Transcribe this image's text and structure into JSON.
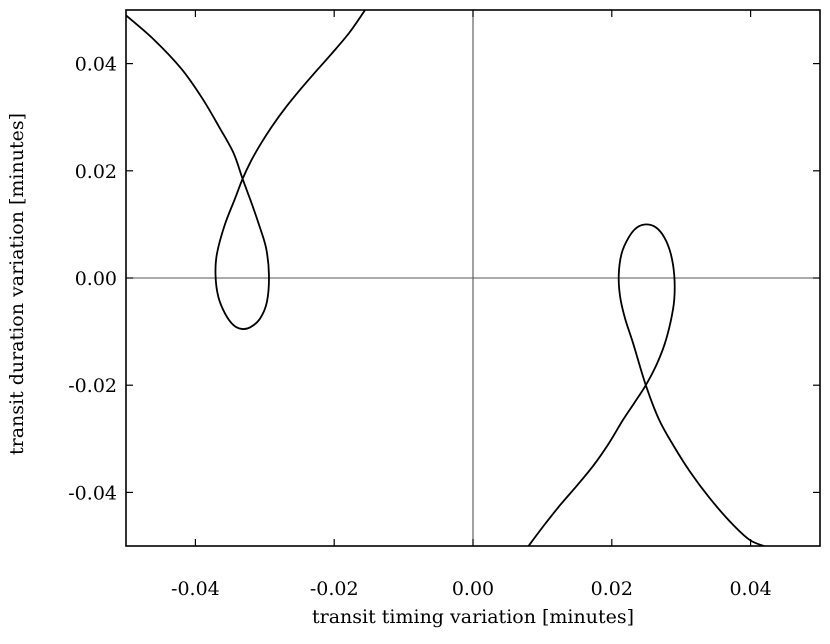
{
  "chart_data": {
    "type": "line",
    "title": "",
    "xlabel": "transit timing variation [minutes]",
    "ylabel": "transit duration variation [minutes]",
    "xlim": [
      -0.05,
      0.05
    ],
    "ylim": [
      -0.05,
      0.05
    ],
    "xticks": [
      -0.04,
      -0.02,
      0.0,
      0.02,
      0.04
    ],
    "yticks": [
      -0.04,
      -0.02,
      0.0,
      0.02,
      0.04
    ],
    "xtick_labels": [
      "-0.04",
      "-0.02",
      "0.00",
      "0.02",
      "0.04"
    ],
    "ytick_labels": [
      "-0.04",
      "-0.02",
      "0.00",
      "0.02",
      "0.04"
    ],
    "zero_lines": true,
    "grid": false,
    "legend": "none",
    "series": [
      {
        "x": [
          -0.05,
          -0.046,
          -0.042,
          -0.039,
          -0.0365,
          -0.0345,
          -0.0332,
          -0.032,
          -0.0308,
          -0.0298,
          -0.0294,
          -0.0297,
          -0.0307,
          -0.0321,
          -0.0333,
          -0.0345,
          -0.0357,
          -0.0367,
          -0.0371,
          -0.0369,
          -0.0358,
          -0.0343,
          -0.0332,
          -0.032,
          -0.0305,
          -0.0288,
          -0.027,
          -0.025,
          -0.0228,
          -0.0204,
          -0.0178,
          -0.0156
        ],
        "y": [
          0.049,
          0.0445,
          0.039,
          0.0335,
          0.028,
          0.0233,
          0.0185,
          0.0143,
          0.0098,
          0.0055,
          0.0005,
          -0.0045,
          -0.0076,
          -0.0092,
          -0.0095,
          -0.0088,
          -0.0067,
          -0.0035,
          0.0005,
          0.0045,
          0.0098,
          0.0148,
          0.0185,
          0.0218,
          0.0252,
          0.0286,
          0.0318,
          0.035,
          0.0383,
          0.0418,
          0.0458,
          0.0499
        ]
      },
      {
        "x": [
          0.008,
          0.0102,
          0.0126,
          0.015,
          0.0174,
          0.0196,
          0.0216,
          0.0233,
          0.0249,
          0.0264,
          0.0276,
          0.0285,
          0.029,
          0.029,
          0.0285,
          0.0276,
          0.0264,
          0.025,
          0.0236,
          0.0224,
          0.0214,
          0.021,
          0.0212,
          0.0219,
          0.0231,
          0.0249,
          0.0268,
          0.0289,
          0.0313,
          0.034,
          0.037,
          0.0398,
          0.0419
        ],
        "y": [
          -0.05,
          -0.0462,
          -0.0423,
          -0.0387,
          -0.0349,
          -0.0308,
          -0.0265,
          -0.0232,
          -0.02,
          -0.0163,
          -0.0124,
          -0.008,
          -0.004,
          0.0005,
          0.0045,
          0.0075,
          0.0094,
          0.01,
          0.0094,
          0.0075,
          0.0045,
          0.0005,
          -0.0035,
          -0.0075,
          -0.0123,
          -0.02,
          -0.0264,
          -0.0313,
          -0.0362,
          -0.0409,
          -0.0454,
          -0.0488,
          -0.05
        ]
      }
    ]
  }
}
